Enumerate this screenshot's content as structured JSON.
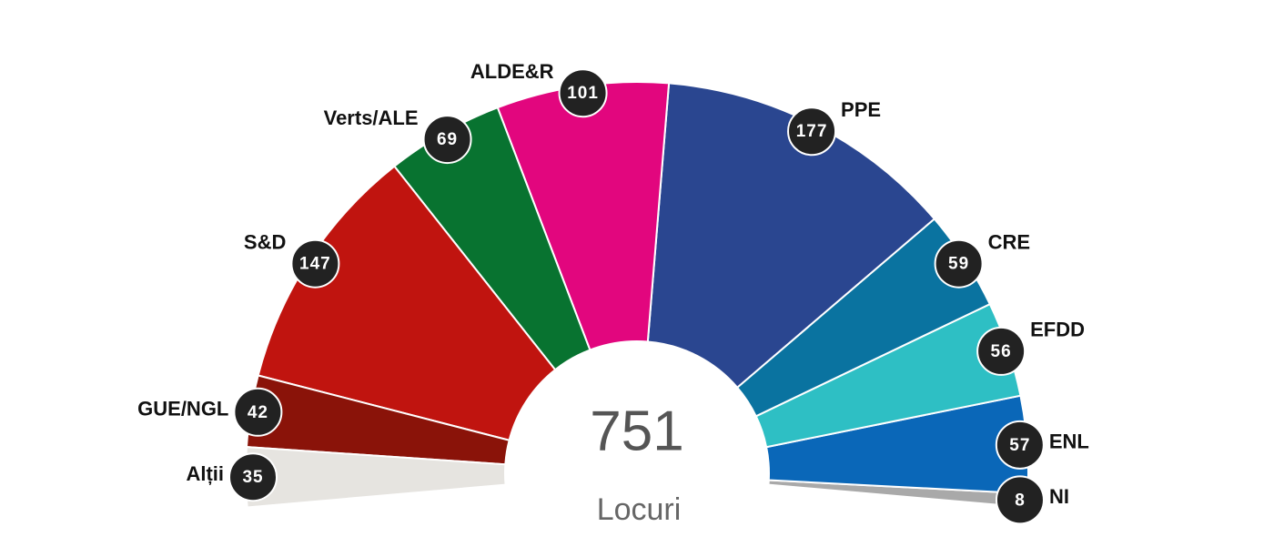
{
  "chart_data": {
    "type": "parliament",
    "categories": [
      "Alții",
      "GUE/NGL",
      "S&D",
      "Verts/ALE",
      "ALDE&R",
      "PPE",
      "CRE",
      "EFDD",
      "ENL",
      "NI"
    ],
    "values": [
      35,
      42,
      147,
      69,
      101,
      177,
      59,
      56,
      57,
      8
    ],
    "colors": [
      "#e6e4e0",
      "#8a1309",
      "#c0140f",
      "#087330",
      "#e2067e",
      "#2a4690",
      "#0a73a0",
      "#2ebfc4",
      "#0a67b8",
      "#a9a9a9"
    ],
    "total": 751,
    "total_label": "Locuri"
  }
}
